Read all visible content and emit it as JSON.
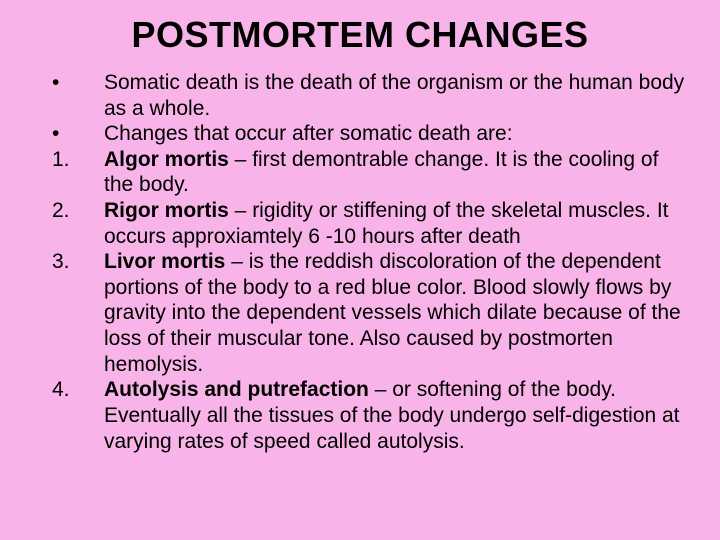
{
  "background_color": "#f8b4e8",
  "text_color": "#000000",
  "title": "POSTMORTEM CHANGES",
  "title_fontsize": 36,
  "body_fontsize": 21,
  "items": [
    {
      "marker": "•",
      "bold_lead": "",
      "text": "Somatic death is the death of the organism or the human body as a whole."
    },
    {
      "marker": "•",
      "bold_lead": "",
      "text": "Changes that occur after somatic death are:"
    },
    {
      "marker": "1.",
      "bold_lead": "Algor mortis",
      "text": " – first demontrable change. It is the cooling of the body."
    },
    {
      "marker": "2.",
      "bold_lead": "Rigor mortis",
      "text": " – rigidity or stiffening of the skeletal muscles. It occurs approxiamtely 6 -10 hours after death"
    },
    {
      "marker": "3.",
      "bold_lead": "Livor mortis",
      "text": " – is the reddish discoloration of the dependent portions of the body to a red blue color. Blood slowly flows by gravity into the dependent vessels which dilate because of the loss of their muscular tone. Also caused by postmorten hemolysis."
    },
    {
      "marker": "4.",
      "bold_lead": "Autolysis and putrefaction",
      "text": " – or softening of the body. Eventually all the tissues of the body undergo self-digestion at varying rates of speed called autolysis."
    }
  ]
}
